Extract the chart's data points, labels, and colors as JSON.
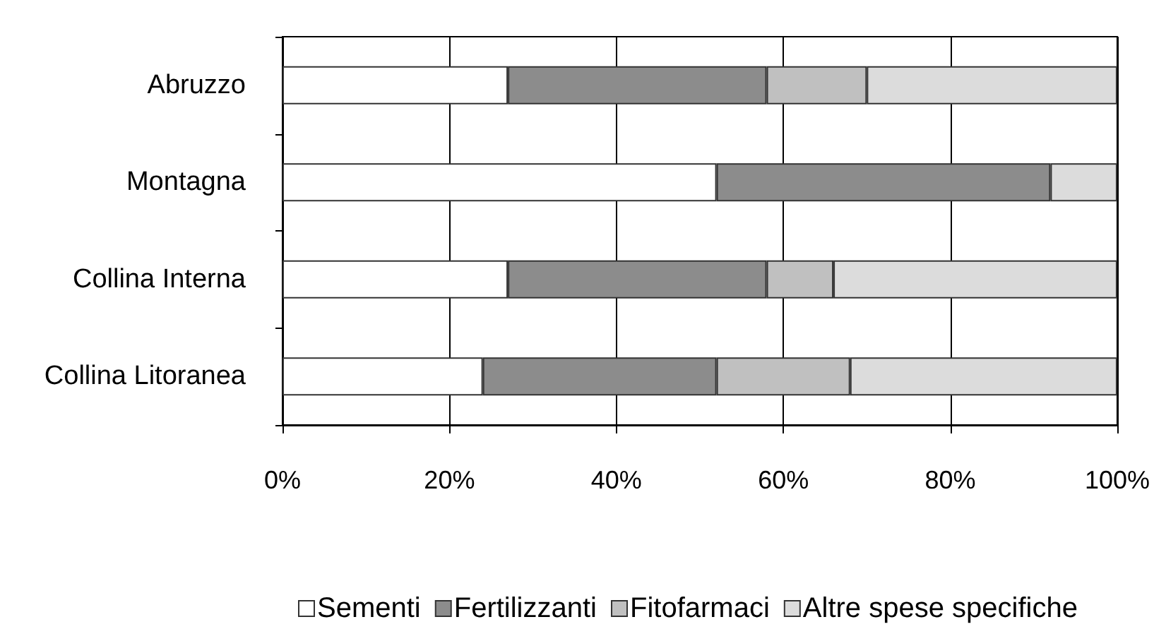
{
  "chart_data": {
    "type": "bar",
    "orientation": "horizontal",
    "stacked": true,
    "categories": [
      "Abruzzo",
      "Montagna",
      "Collina Interna",
      "Collina Litoranea"
    ],
    "series": [
      {
        "name": "Sementi",
        "color": "#ffffff",
        "values": [
          27,
          52,
          27,
          24
        ]
      },
      {
        "name": "Fertilizzanti",
        "color": "#8c8c8c",
        "values": [
          31,
          40,
          31,
          28
        ]
      },
      {
        "name": "Fitofarmaci",
        "color": "#c0c0c0",
        "values": [
          12,
          0,
          8,
          16
        ]
      },
      {
        "name": "Altre spese specifiche",
        "color": "#dcdcdc",
        "values": [
          30,
          8,
          34,
          32
        ]
      }
    ],
    "xlim": [
      0,
      100
    ],
    "xticks": [
      {
        "value": 0,
        "label": "0%"
      },
      {
        "value": 20,
        "label": "20%"
      },
      {
        "value": 40,
        "label": "40%"
      },
      {
        "value": 60,
        "label": "60%"
      },
      {
        "value": 80,
        "label": "80%"
      },
      {
        "value": 100,
        "label": "100%"
      }
    ],
    "grid": "x",
    "legend": "bottom"
  }
}
